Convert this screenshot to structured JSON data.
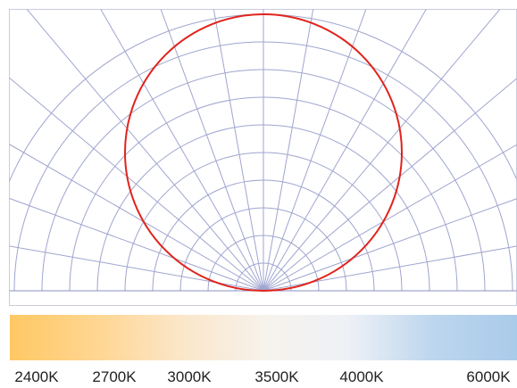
{
  "chart_data": {
    "type": "polar",
    "series": [
      {
        "r": [
          0.0,
          1.0
        ],
        "color": "#e0231c"
      }
    ],
    "grid": true,
    "grid_color": "#9fa5cf",
    "axis_color": "#8a90c0"
  },
  "color_temperature_bar": {
    "stops": [
      "#ffc864",
      "#ffd590",
      "#fbe6c8",
      "#f7f2ec",
      "#eef1f6",
      "#bdd6ee",
      "#a9cbea"
    ],
    "labels": [
      "2400K",
      "2700K",
      "3000K",
      "3500K",
      "4000K",
      "6000K"
    ]
  }
}
